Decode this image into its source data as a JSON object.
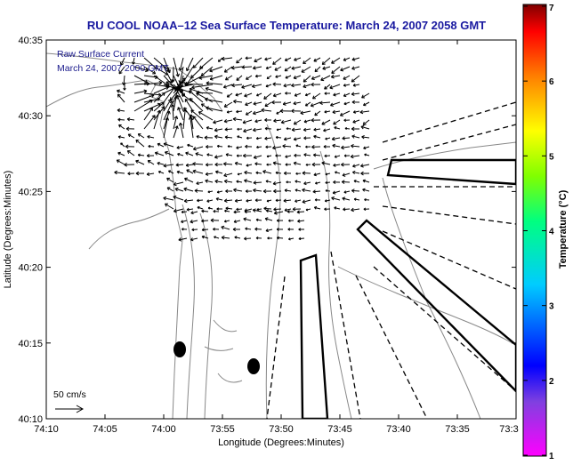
{
  "title": "RU COOL  NOAA–12  Sea Surface Temperature:  March 24, 2007 2058 GMT",
  "legend": {
    "line1": "Raw Surface Current",
    "line2": "March 24, 2007  2000 GMT"
  },
  "scale_label": "50 cm/s",
  "x_axis": {
    "label": "Longitude (Degrees:Minutes)",
    "ticks": [
      "74:10",
      "74:05",
      "74:00",
      "73:55",
      "73:50",
      "73:45",
      "73:40",
      "73:35",
      "73:3"
    ]
  },
  "y_axis": {
    "label": "Latitude (Degrees:Minutes)",
    "ticks": [
      "40:35",
      "40:30",
      "40:25",
      "40:20",
      "40:15",
      "40:10"
    ]
  },
  "colorbar": {
    "label": "Temperature (°C)",
    "ticks": [
      "7",
      "6",
      "5",
      "4",
      "3",
      "2",
      "1"
    ],
    "min": 1,
    "max": 7
  },
  "colors": {
    "title_text": "#1a1aa0",
    "legend_text": "#1a1a8c",
    "contour": "#888888",
    "vector": "#000000"
  }
}
